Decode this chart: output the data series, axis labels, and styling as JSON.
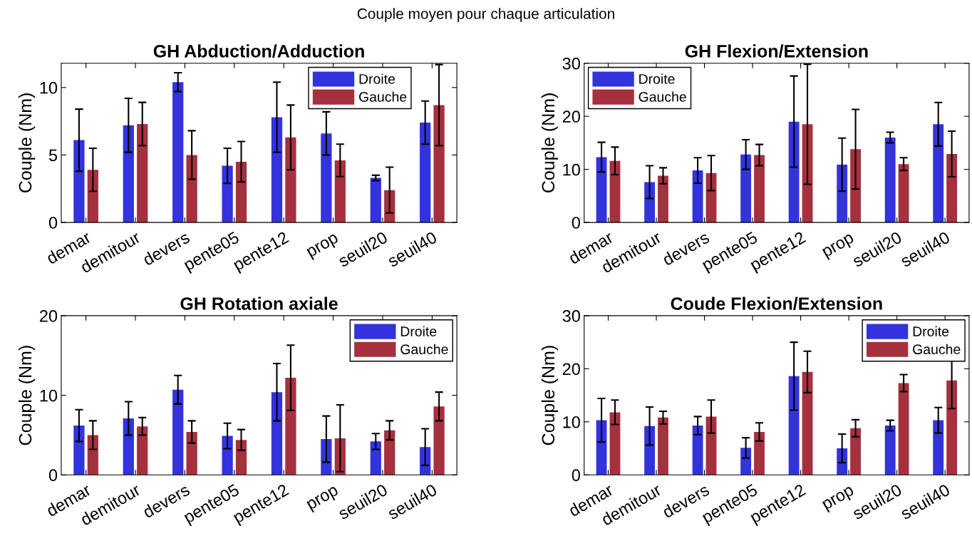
{
  "chart_data": [
    {
      "type": "bar",
      "annotations": [
        "Couple moyen pour chaque articulation"
      ],
      "title": "GH Abduction/Adduction",
      "ylabel": "Couple (Nm)",
      "categories": [
        "demar",
        "demitour",
        "devers",
        "pente05",
        "pente12",
        "prop",
        "seuil20",
        "seuil40"
      ],
      "ylim": [
        0,
        11.8
      ],
      "yticks": [
        0,
        5,
        10
      ],
      "legend": "top right",
      "series": [
        {
          "name": "Droite",
          "color": "#3333dd",
          "values": [
            6.1,
            7.2,
            10.4,
            4.2,
            7.8,
            6.6,
            3.3,
            7.4
          ],
          "errors": [
            2.3,
            2.0,
            0.7,
            1.3,
            2.6,
            1.6,
            0.2,
            1.6
          ]
        },
        {
          "name": "Gauche",
          "color": "#a5313e",
          "values": [
            3.9,
            7.3,
            5.0,
            4.5,
            6.3,
            4.6,
            2.4,
            8.7
          ],
          "errors": [
            1.6,
            1.6,
            1.8,
            1.5,
            2.4,
            1.2,
            1.7,
            3.0
          ]
        }
      ]
    },
    {
      "type": "bar",
      "title": "GH Flexion/Extension",
      "ylabel": "Couple (Nm)",
      "categories": [
        "demar",
        "demitour",
        "devers",
        "pente05",
        "pente12",
        "prop",
        "seuil20",
        "seuil40"
      ],
      "ylim": [
        0,
        30
      ],
      "yticks": [
        0,
        10,
        20,
        30
      ],
      "legend": "top left",
      "series": [
        {
          "name": "Droite",
          "color": "#3333dd",
          "values": [
            12.3,
            7.6,
            9.8,
            12.8,
            19.0,
            10.9,
            16.0,
            18.5
          ],
          "errors": [
            2.8,
            3.1,
            2.4,
            2.8,
            8.6,
            5.0,
            1.0,
            4.1
          ]
        },
        {
          "name": "Gauche",
          "color": "#a5313e",
          "values": [
            11.6,
            8.8,
            9.3,
            12.7,
            18.5,
            13.8,
            11.0,
            12.9
          ],
          "errors": [
            2.6,
            1.5,
            3.3,
            2.0,
            11.3,
            7.5,
            1.2,
            4.3
          ]
        }
      ]
    },
    {
      "type": "bar",
      "title": "GH Rotation axiale",
      "ylabel": "Couple (Nm)",
      "categories": [
        "demar",
        "demitour",
        "devers",
        "pente05",
        "pente12",
        "prop",
        "seuil20",
        "seuil40"
      ],
      "ylim": [
        0,
        20
      ],
      "yticks": [
        0,
        10,
        20
      ],
      "legend": "top right",
      "series": [
        {
          "name": "Droite",
          "color": "#3333dd",
          "values": [
            6.2,
            7.1,
            10.7,
            4.9,
            10.4,
            4.5,
            4.2,
            3.5
          ],
          "errors": [
            2.0,
            2.1,
            1.8,
            1.6,
            3.6,
            2.9,
            1.0,
            2.3
          ]
        },
        {
          "name": "Gauche",
          "color": "#a5313e",
          "values": [
            5.0,
            6.1,
            5.4,
            4.4,
            12.2,
            4.6,
            5.6,
            8.6
          ],
          "errors": [
            1.8,
            1.1,
            1.4,
            1.3,
            4.1,
            4.2,
            1.2,
            1.8
          ]
        }
      ]
    },
    {
      "type": "bar",
      "title": "Coude Flexion/Extension",
      "ylabel": "Couple (Nm)",
      "categories": [
        "demar",
        "demitour",
        "devers",
        "pente05",
        "pente12",
        "prop",
        "seuil20",
        "seuil40"
      ],
      "ylim": [
        0,
        30
      ],
      "yticks": [
        0,
        10,
        20,
        30
      ],
      "legend": "top right",
      "series": [
        {
          "name": "Droite",
          "color": "#3333dd",
          "values": [
            10.3,
            9.2,
            9.3,
            5.1,
            18.6,
            5.0,
            9.3,
            10.3
          ],
          "errors": [
            4.1,
            3.6,
            1.7,
            1.9,
            6.4,
            2.7,
            1.0,
            2.4
          ]
        },
        {
          "name": "Gauche",
          "color": "#a5313e",
          "values": [
            11.8,
            10.8,
            11.0,
            8.1,
            19.4,
            8.8,
            17.3,
            17.8
          ],
          "errors": [
            2.3,
            1.2,
            3.1,
            1.7,
            3.9,
            1.6,
            1.6,
            5.3
          ]
        }
      ]
    }
  ]
}
